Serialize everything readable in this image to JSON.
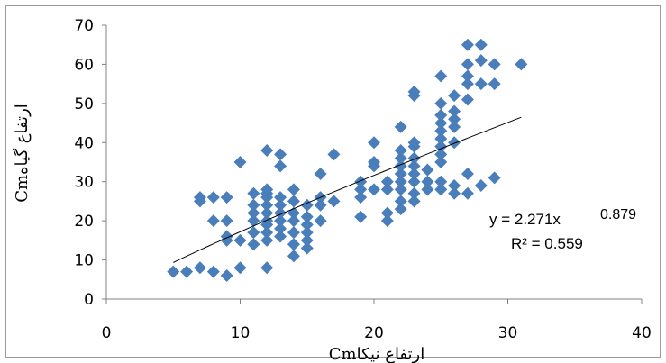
{
  "chart_data": {
    "type": "scatter",
    "title": "",
    "xlabel": "ارتفاع نیکاCm",
    "ylabel": "ارتفاع گیاهCm",
    "xlim": [
      0,
      40
    ],
    "ylim": [
      0,
      70
    ],
    "xticks": [
      "0",
      "10",
      "20",
      "30",
      "40"
    ],
    "yticks": [
      "0",
      "10",
      "20",
      "30",
      "40",
      "50",
      "60",
      "70"
    ],
    "grid": false,
    "marker_color": "#4a7ebb",
    "trendline": {
      "type": "power",
      "a": 2.271,
      "b": 0.879,
      "x_from": 5,
      "x_to": 31,
      "color": "#000000"
    },
    "equation_text": "y = 2.271x",
    "equation_exponent": "0.879",
    "r2_text": "R² = 0.559",
    "series": [
      {
        "points": [
          [
            5,
            7
          ],
          [
            6,
            7
          ],
          [
            7,
            8
          ],
          [
            8,
            7
          ],
          [
            9,
            6
          ],
          [
            10,
            8
          ],
          [
            12,
            8
          ],
          [
            7,
            25
          ],
          [
            7,
            26
          ],
          [
            8,
            26
          ],
          [
            9,
            26
          ],
          [
            8,
            20
          ],
          [
            9,
            20
          ],
          [
            9,
            16
          ],
          [
            9,
            15
          ],
          [
            10,
            15
          ],
          [
            11,
            14
          ],
          [
            10,
            35
          ],
          [
            11,
            20
          ],
          [
            11,
            22
          ],
          [
            11,
            24
          ],
          [
            11,
            27
          ],
          [
            11,
            17
          ],
          [
            12,
            15
          ],
          [
            12,
            17
          ],
          [
            12,
            19
          ],
          [
            12,
            20
          ],
          [
            12,
            22
          ],
          [
            12,
            24
          ],
          [
            12,
            26
          ],
          [
            12,
            27
          ],
          [
            12,
            28
          ],
          [
            12,
            38
          ],
          [
            13,
            37
          ],
          [
            13,
            34
          ],
          [
            13,
            26
          ],
          [
            13,
            24
          ],
          [
            13,
            22
          ],
          [
            13,
            20
          ],
          [
            13,
            18
          ],
          [
            13,
            16
          ],
          [
            14,
            28
          ],
          [
            14,
            25
          ],
          [
            14,
            22
          ],
          [
            14,
            20
          ],
          [
            14,
            17
          ],
          [
            14,
            14
          ],
          [
            14,
            11
          ],
          [
            15,
            24
          ],
          [
            15,
            21
          ],
          [
            15,
            19
          ],
          [
            15,
            17
          ],
          [
            15,
            15
          ],
          [
            15,
            13
          ],
          [
            16,
            32
          ],
          [
            16,
            26
          ],
          [
            16,
            24
          ],
          [
            16,
            20
          ],
          [
            17,
            37
          ],
          [
            17,
            25
          ],
          [
            19,
            21
          ],
          [
            19,
            26
          ],
          [
            19,
            28
          ],
          [
            19,
            30
          ],
          [
            20,
            40
          ],
          [
            20,
            34
          ],
          [
            20,
            35
          ],
          [
            20,
            28
          ],
          [
            21,
            20
          ],
          [
            21,
            22
          ],
          [
            21,
            28
          ],
          [
            21,
            30
          ],
          [
            22,
            44
          ],
          [
            22,
            38
          ],
          [
            22,
            36
          ],
          [
            22,
            34
          ],
          [
            22,
            32
          ],
          [
            22,
            30
          ],
          [
            22,
            28
          ],
          [
            22,
            25
          ],
          [
            22,
            23
          ],
          [
            23,
            52
          ],
          [
            23,
            53
          ],
          [
            23,
            40
          ],
          [
            23,
            39
          ],
          [
            23,
            36
          ],
          [
            23,
            34
          ],
          [
            23,
            32
          ],
          [
            23,
            30
          ],
          [
            23,
            27
          ],
          [
            23,
            25
          ],
          [
            24,
            33
          ],
          [
            24,
            30
          ],
          [
            24,
            28
          ],
          [
            25,
            57
          ],
          [
            25,
            50
          ],
          [
            25,
            47
          ],
          [
            25,
            45
          ],
          [
            25,
            43
          ],
          [
            25,
            41
          ],
          [
            25,
            39
          ],
          [
            25,
            37
          ],
          [
            25,
            35
          ],
          [
            25,
            30
          ],
          [
            25,
            28
          ],
          [
            26,
            52
          ],
          [
            26,
            48
          ],
          [
            26,
            46
          ],
          [
            26,
            44
          ],
          [
            26,
            40
          ],
          [
            26,
            29
          ],
          [
            26,
            27
          ],
          [
            27,
            65
          ],
          [
            27,
            60
          ],
          [
            27,
            57
          ],
          [
            27,
            55
          ],
          [
            27,
            51
          ],
          [
            27,
            32
          ],
          [
            27,
            27
          ],
          [
            28,
            65
          ],
          [
            28,
            61
          ],
          [
            28,
            55
          ],
          [
            28,
            29
          ],
          [
            29,
            60
          ],
          [
            29,
            55
          ],
          [
            29,
            31
          ],
          [
            31,
            60
          ]
        ]
      }
    ]
  }
}
